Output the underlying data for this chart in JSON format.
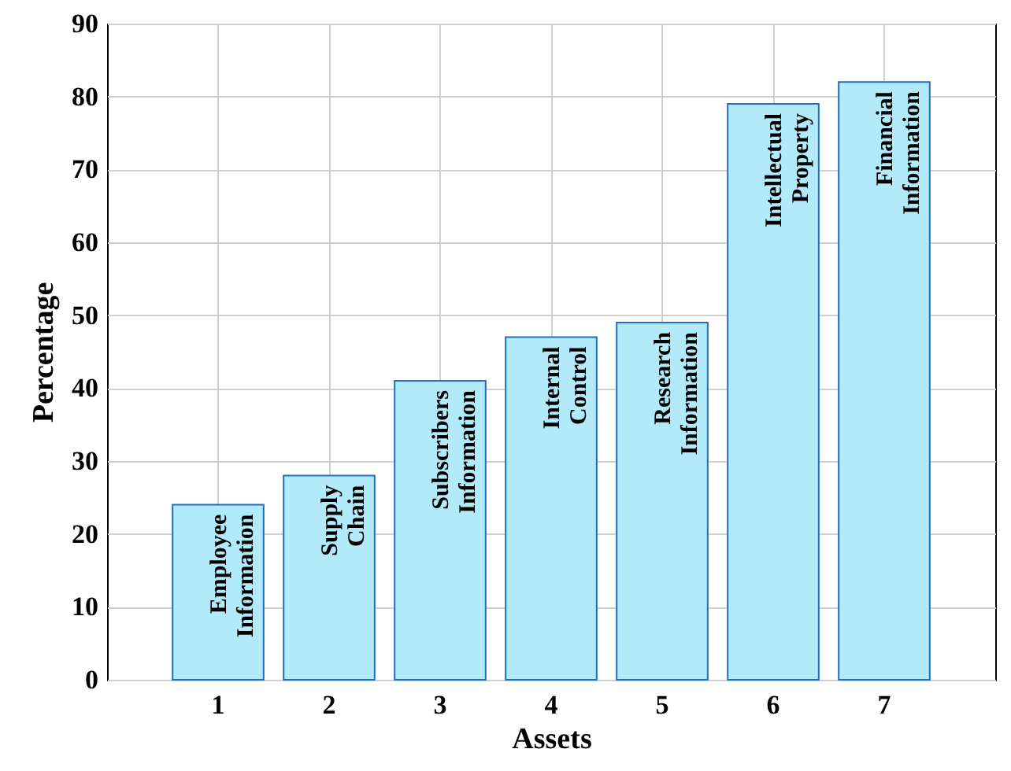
{
  "chart_data": {
    "type": "bar",
    "xlabel": "Assets",
    "ylabel": "Percentage",
    "categories": [
      "1",
      "2",
      "3",
      "4",
      "5",
      "6",
      "7"
    ],
    "values": [
      24,
      28,
      41,
      47,
      49,
      79,
      82
    ],
    "color": "#b3eafa",
    "ylim": [
      0,
      90
    ],
    "yticks": [
      0,
      10,
      20,
      30,
      40,
      50,
      60,
      70,
      80,
      90
    ],
    "grid": true,
    "annotations": [
      {
        "text": "Employee\nInformation",
        "x": "1",
        "y": 24
      },
      {
        "text": "Supply\nChain",
        "x": "2",
        "y": 28
      },
      {
        "text": "Subscribers\nInformation",
        "x": "3",
        "y": 41
      },
      {
        "text": "Internal\nControl",
        "x": "4",
        "y": 47
      },
      {
        "text": "Research\nInformation",
        "x": "5",
        "y": 49
      },
      {
        "text": "Intellectual\nProperty",
        "x": "6",
        "y": 79
      },
      {
        "text": "Financial\nInformation",
        "x": "7",
        "y": 82
      }
    ]
  }
}
